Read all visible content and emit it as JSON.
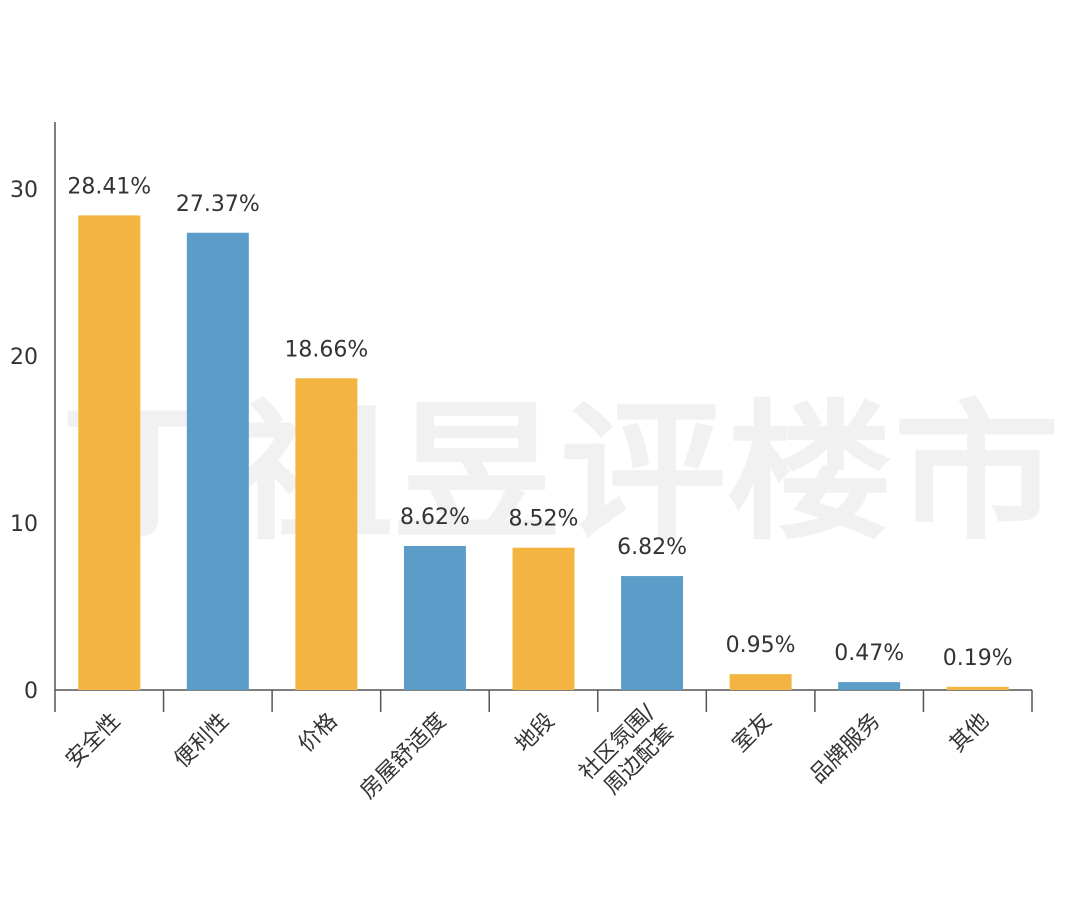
{
  "chart_data": {
    "type": "bar",
    "categories": [
      "安全性",
      "便利性",
      "价格",
      "房屋舒适度",
      "地段",
      "社区氛围/周边配套",
      "室友",
      "品牌服务",
      "其他"
    ],
    "values": [
      28.41,
      27.37,
      18.66,
      8.62,
      8.52,
      6.82,
      0.95,
      0.47,
      0.19
    ],
    "value_labels": [
      "28.41%",
      "27.37%",
      "18.66%",
      "8.62%",
      "8.52%",
      "6.82%",
      "0.95%",
      "0.47%",
      "0.19%"
    ],
    "colors": [
      "#f3b441",
      "#5b9cc9",
      "#f3b441",
      "#5b9cc9",
      "#f3b441",
      "#5b9cc9",
      "#f3b441",
      "#5b9cc9",
      "#f3b441"
    ],
    "ylim": [
      0,
      34
    ],
    "yticks": [
      0,
      10,
      20,
      30
    ],
    "grid": false,
    "watermark": "丁祖昱评楼市"
  }
}
